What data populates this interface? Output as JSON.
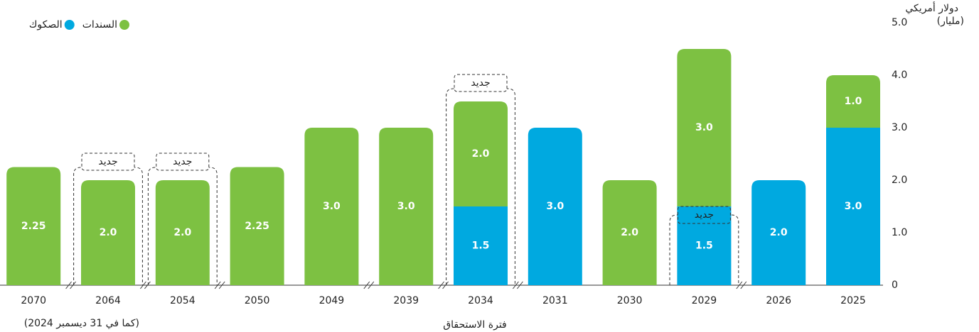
{
  "chart_data": {
    "type": "bar",
    "stacked": true,
    "direction": "rtl",
    "y_axis_side": "right",
    "y_label": [
      "دولار أمريكي",
      "(مليار)"
    ],
    "x_label": "فترة الاستحقاق",
    "note": "(كما في 31 ديسمبر 2024)",
    "categories": [
      "2025",
      "2026",
      "2029",
      "2030",
      "2031",
      "2034",
      "2039",
      "2049",
      "2050",
      "2054",
      "2064",
      "2070"
    ],
    "series": [
      {
        "name": "الصكوك",
        "color": "#00a9e0",
        "values": [
          3.0,
          2.0,
          1.5,
          null,
          3.0,
          1.5,
          null,
          null,
          null,
          null,
          null,
          null
        ],
        "value_labels": [
          "3.0",
          "2.0",
          "1.5",
          null,
          "3.0",
          "1.5",
          null,
          null,
          null,
          null,
          null,
          null
        ]
      },
      {
        "name": "السندات",
        "color": "#7dc142",
        "values": [
          1.0,
          null,
          3.0,
          2.0,
          null,
          2.0,
          3.0,
          3.0,
          2.25,
          2.0,
          2.0,
          2.25
        ],
        "value_labels": [
          "1.0",
          null,
          "3.0",
          "2.0",
          null,
          "2.0",
          "3.0",
          "3.0",
          "2.25",
          "2.0",
          "2.0",
          "2.25"
        ]
      }
    ],
    "annotations": [
      {
        "text": "جديد",
        "category": "2029",
        "series": "الصكوك"
      },
      {
        "text": "جديد",
        "category": "2034"
      },
      {
        "text": "جديد",
        "category": "2054"
      },
      {
        "text": "جديد",
        "category": "2064"
      }
    ],
    "ylim": [
      0,
      5
    ],
    "yticks": [
      0,
      {
        "value": 1,
        "label": "1.0"
      },
      {
        "value": 2,
        "label": "2.0"
      },
      {
        "value": 3,
        "label": "3.0"
      },
      {
        "value": 4,
        "label": "4.0"
      },
      {
        "value": 5,
        "label": "5.0"
      }
    ],
    "legend": "top-left"
  }
}
